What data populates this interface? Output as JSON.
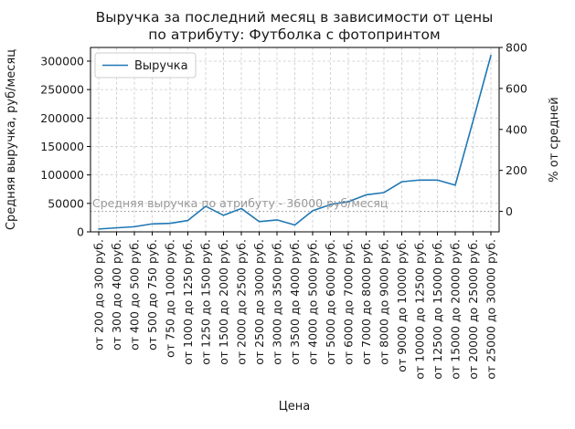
{
  "title": {
    "line1": "Выручка за последний месяц в зависимости от цены",
    "line2": "по атрибуту: Футболка с фотопринтом"
  },
  "chart_data": {
    "type": "line",
    "title": "Выручка за последний месяц в зависимости от цены по атрибуту: Футболка с фотопринтом",
    "xlabel": "Цена",
    "ylabel_left": "Средняя выручка, руб/месяц",
    "ylabel_right": "% от средней",
    "grid": true,
    "legend_position": "upper left",
    "categories": [
      "от 200 до 300 руб.",
      "от 300 до 400 руб.",
      "от 400 до 500 руб.",
      "от 500 до 750 руб.",
      "от 750 до 1000 руб.",
      "от 1000 до 1250 руб.",
      "от 1250 до 1500 руб.",
      "от 1500 до 2000 руб.",
      "от 2000 до 2500 руб.",
      "от 2500 до 3000 руб.",
      "от 3000 до 3500 руб.",
      "от 3500 до 4000 руб.",
      "от 4000 до 5000 руб.",
      "от 5000 до 6000 руб.",
      "от 6000 до 7000 руб.",
      "от 7000 до 8000 руб.",
      "от 8000 до 9000 руб.",
      "от 9000 до 10000 руб.",
      "от 10000 до 12500 руб.",
      "от 12500 до 15000 руб.",
      "от 15000 до 20000 руб.",
      "от 20000 до 25000 руб.",
      "от 25000 до 30000 руб."
    ],
    "series": [
      {
        "name": "Выручка",
        "color": "#1f77b4",
        "values": [
          5000,
          7000,
          9000,
          14000,
          15000,
          20000,
          45000,
          29000,
          41000,
          18000,
          21000,
          12000,
          37000,
          48000,
          53000,
          65000,
          69000,
          88000,
          91000,
          91000,
          82000,
          195000,
          310000
        ]
      }
    ],
    "average_line": {
      "value": 36000,
      "label": "Средняя выручка по атрибуту - 36000 руб/месяц",
      "color": "#999999"
    },
    "left_axis": {
      "min": 0,
      "max": 324000,
      "ticks": [
        0,
        50000,
        100000,
        150000,
        200000,
        250000,
        300000
      ]
    },
    "right_axis": {
      "unit": "%",
      "ticks": [
        0,
        200,
        400,
        600,
        800
      ]
    }
  }
}
